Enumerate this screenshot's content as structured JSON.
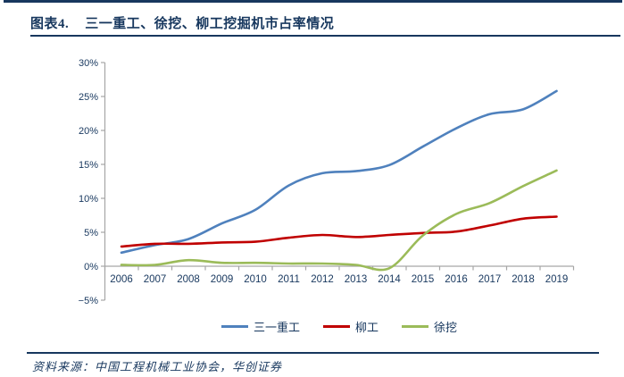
{
  "header": {
    "figure_label": "图表4.",
    "title": "三一重工、徐挖、柳工挖掘机市占率情况"
  },
  "footer": {
    "source": "资料来源：中国工程机械工业协会，华创证券"
  },
  "colors": {
    "accent_navy": "#17375E",
    "axis_gray": "#A6A6A6",
    "sany_blue": "#4F81BD",
    "liugong_red": "#C00000",
    "xugong_green": "#9BBB59"
  },
  "chart_data": {
    "type": "line",
    "title": "三一重工、徐挖、柳工挖掘机市占率情况",
    "xlabel": "",
    "ylabel": "",
    "categories": [
      "2006",
      "2007",
      "2008",
      "2009",
      "2010",
      "2011",
      "2012",
      "2013",
      "2014",
      "2015",
      "2016",
      "2017",
      "2018",
      "2019"
    ],
    "series": [
      {
        "name": "三一重工",
        "color": "#4F81BD",
        "values": [
          2.0,
          3.1,
          4.0,
          6.3,
          8.3,
          11.9,
          13.7,
          14.0,
          14.9,
          17.6,
          20.3,
          22.4,
          23.1,
          25.8
        ]
      },
      {
        "name": "柳工",
        "color": "#C00000",
        "values": [
          2.9,
          3.3,
          3.3,
          3.5,
          3.6,
          4.2,
          4.6,
          4.3,
          4.6,
          4.9,
          5.1,
          6.0,
          7.0,
          7.3
        ]
      },
      {
        "name": "徐挖",
        "color": "#9BBB59",
        "values": [
          0.2,
          0.2,
          0.9,
          0.5,
          0.5,
          0.4,
          0.4,
          0.2,
          -0.3,
          4.5,
          7.7,
          9.3,
          11.8,
          14.1
        ]
      }
    ],
    "ylim": [
      -5,
      30
    ],
    "ytick_step": 5,
    "ytick_labels": [
      "30%",
      "25%",
      "20%",
      "15%",
      "10%",
      "5%",
      "0%",
      "−5%"
    ],
    "unit": "percent",
    "grid": false,
    "legend_position": "bottom"
  }
}
